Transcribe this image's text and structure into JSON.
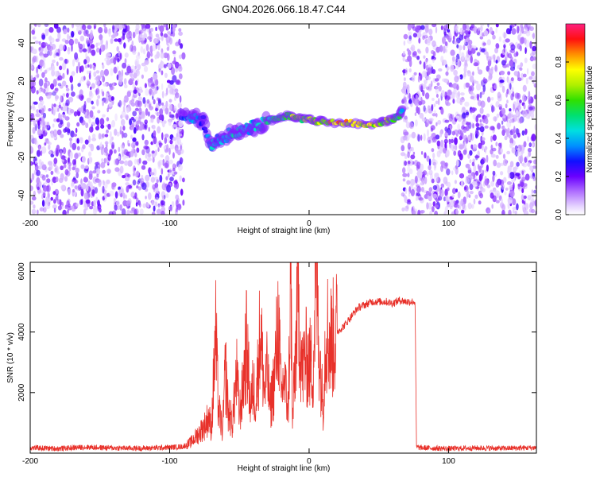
{
  "title": "GN04.2026.066.18.47.C44",
  "chart_data": [
    {
      "type": "heatmap",
      "title": "GN04.2026.066.18.47.C44",
      "xlabel": "Height of straight line (km)",
      "ylabel": "Frequency (Hz)",
      "xlim": [
        -200,
        163
      ],
      "ylim": [
        -50,
        50
      ],
      "xticks": [
        -200,
        -100,
        0,
        100
      ],
      "yticks": [
        -40,
        -20,
        0,
        20,
        40
      ],
      "colorbar": {
        "label": "Normalized spectral amplitude",
        "range": [
          0,
          1
        ],
        "ticks": [
          "0.0",
          "0.2",
          "0.4",
          "0.6",
          "0.8"
        ]
      },
      "noise_regions": [
        [
          -200,
          -90
        ],
        [
          67,
          163
        ]
      ],
      "blank_region": [
        -90,
        67
      ],
      "signal_track": {
        "x": [
          -92,
          -85,
          -80,
          -75,
          -70,
          -65,
          -60,
          -55,
          -50,
          -45,
          -40,
          -35,
          -30,
          -25,
          -20,
          -15,
          -10,
          -5,
          0,
          5,
          10,
          20,
          30,
          40,
          50,
          55,
          60,
          65,
          67
        ],
        "y": [
          3,
          0,
          1,
          -2,
          -14,
          -11,
          -9,
          -7,
          -6,
          -5,
          -4,
          -3,
          -1,
          0,
          1,
          2,
          1,
          0,
          0,
          -1,
          -1,
          -2,
          -2,
          -3,
          -2,
          -1,
          0,
          2,
          6
        ],
        "amplitude": [
          0.35,
          0.45,
          0.4,
          0.3,
          0.5,
          0.4,
          0.45,
          0.5,
          0.55,
          0.5,
          0.45,
          0.5,
          0.55,
          0.6,
          0.6,
          0.65,
          0.8,
          0.7,
          0.75,
          0.8,
          0.85,
          0.95,
          0.9,
          0.85,
          0.8,
          0.75,
          0.7,
          0.6,
          0.5
        ]
      }
    },
    {
      "type": "line",
      "xlabel": "Height of straight line (km)",
      "ylabel": "SNR (10 * v/v)",
      "xlim": [
        -200,
        163
      ],
      "ylim": [
        0,
        6300
      ],
      "xticks": [
        -200,
        -100,
        0,
        100
      ],
      "yticks": [
        2000,
        4000,
        6000
      ],
      "color": "#e8312a",
      "series": [
        {
          "name": "SNR",
          "x": [
            -200,
            -180,
            -160,
            -140,
            -120,
            -100,
            -90,
            -85,
            -80,
            -75,
            -72,
            -70,
            -67,
            -65,
            -62,
            -60,
            -58,
            -55,
            -52,
            -50,
            -48,
            -45,
            -42,
            -40,
            -38,
            -35,
            -32,
            -30,
            -28,
            -25,
            -22,
            -20,
            -18,
            -15,
            -13,
            -12,
            -10,
            -8,
            -5,
            -3,
            0,
            3,
            5,
            7,
            10,
            12,
            15,
            18,
            20,
            25,
            30,
            35,
            40,
            45,
            50,
            55,
            60,
            65,
            70,
            75,
            76,
            77,
            80,
            100,
            120,
            140,
            163
          ],
          "y": [
            180,
            150,
            200,
            170,
            160,
            190,
            220,
            350,
            600,
            900,
            1200,
            800,
            3900,
            1500,
            700,
            2800,
            1400,
            1000,
            2600,
            1300,
            1900,
            3600,
            1600,
            2200,
            1800,
            4100,
            2000,
            2700,
            1500,
            2400,
            4400,
            1800,
            2500,
            1400,
            6000,
            900,
            3000,
            5400,
            2600,
            3200,
            3000,
            2800,
            6300,
            3700,
            1500,
            4200,
            3700,
            3800,
            4000,
            4200,
            4500,
            4800,
            4900,
            5000,
            5000,
            5000,
            4950,
            5050,
            5000,
            5000,
            5000,
            200,
            180,
            150,
            170,
            160,
            180
          ]
        }
      ]
    }
  ]
}
